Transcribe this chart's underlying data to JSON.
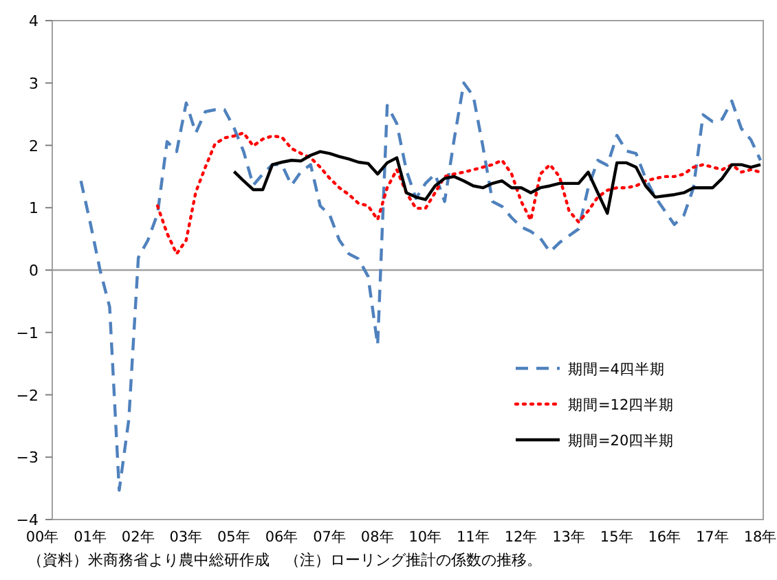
{
  "chart_data": {
    "type": "line",
    "categories": [
      "00年",
      null,
      null,
      null,
      null,
      "01年",
      null,
      null,
      null,
      null,
      "02年",
      null,
      null,
      null,
      null,
      "03年",
      null,
      null,
      null,
      null,
      "05年",
      null,
      null,
      null,
      null,
      "06年",
      null,
      null,
      null,
      null,
      "07年",
      null,
      null,
      null,
      null,
      "08年",
      null,
      null,
      null,
      null,
      "10年",
      null,
      null,
      null,
      null,
      "11年",
      null,
      null,
      null,
      null,
      "12年",
      null,
      null,
      null,
      null,
      "13年",
      null,
      null,
      null,
      null,
      "15年",
      null,
      null,
      null,
      null,
      "16年",
      null,
      null,
      null,
      null,
      "17年",
      null,
      null,
      null,
      null,
      "18年"
    ],
    "ylim": [
      -4,
      4
    ],
    "yticks": [
      -4,
      -3,
      -2,
      -1,
      0,
      1,
      2,
      3,
      4
    ],
    "legend": "bottom right",
    "series": [
      {
        "name": "期間=4四半期",
        "color": "#4f81bd",
        "line_style": "dashed",
        "values": [
          null,
          null,
          null,
          null,
          1.43,
          0.74,
          0.0,
          -0.59,
          -3.53,
          -2.4,
          0.2,
          0.48,
          0.9,
          2.06,
          1.9,
          2.68,
          2.2,
          2.54,
          2.57,
          2.57,
          2.28,
          1.9,
          1.36,
          1.54,
          1.69,
          1.69,
          1.36,
          1.58,
          1.69,
          1.03,
          0.88,
          0.48,
          0.26,
          0.18,
          -0.1,
          -1.2,
          2.64,
          2.35,
          1.6,
          1.15,
          1.39,
          1.54,
          1.1,
          2.1,
          3.0,
          2.79,
          1.98,
          1.1,
          1.02,
          0.84,
          0.69,
          0.62,
          0.51,
          0.29,
          0.44,
          0.55,
          0.66,
          1.32,
          1.76,
          1.68,
          2.16,
          1.91,
          1.87,
          1.47,
          1.17,
          0.95,
          0.73,
          0.88,
          1.32,
          2.49,
          2.38,
          2.42,
          2.71,
          2.27,
          2.09,
          1.76
        ]
      },
      {
        "name": "期間=12四半期",
        "color": "#ff0000",
        "line_style": "dotted",
        "values": [
          null,
          null,
          null,
          null,
          null,
          null,
          null,
          null,
          null,
          null,
          null,
          null,
          1.03,
          0.59,
          0.26,
          0.48,
          1.25,
          1.65,
          2.02,
          2.12,
          2.15,
          2.2,
          1.99,
          2.1,
          2.15,
          2.13,
          1.95,
          1.87,
          1.8,
          1.65,
          1.47,
          1.32,
          1.21,
          1.07,
          1.03,
          0.81,
          1.32,
          1.61,
          1.24,
          0.99,
          0.99,
          1.24,
          1.5,
          1.54,
          1.57,
          1.61,
          1.65,
          1.69,
          1.76,
          1.54,
          1.1,
          0.8,
          1.54,
          1.69,
          1.5,
          0.95,
          0.77,
          0.95,
          1.17,
          1.28,
          1.32,
          1.32,
          1.35,
          1.43,
          1.47,
          1.5,
          1.5,
          1.54,
          1.65,
          1.69,
          1.65,
          1.61,
          1.69,
          1.57,
          1.61,
          1.57
        ]
      },
      {
        "name": "期間=20四半期",
        "color": "#000000",
        "line_style": "solid",
        "values": [
          null,
          null,
          null,
          null,
          null,
          null,
          null,
          null,
          null,
          null,
          null,
          null,
          null,
          null,
          null,
          null,
          null,
          null,
          null,
          null,
          1.58,
          1.43,
          1.29,
          1.29,
          1.69,
          1.73,
          1.76,
          1.75,
          1.84,
          1.9,
          1.87,
          1.82,
          1.78,
          1.73,
          1.71,
          1.54,
          1.72,
          1.8,
          1.24,
          1.17,
          1.13,
          1.35,
          1.47,
          1.5,
          1.43,
          1.35,
          1.32,
          1.39,
          1.43,
          1.32,
          1.32,
          1.24,
          1.32,
          1.35,
          1.39,
          1.39,
          1.39,
          1.57,
          1.24,
          0.91,
          1.72,
          1.72,
          1.65,
          1.35,
          1.17,
          1.19,
          1.21,
          1.24,
          1.32,
          1.32,
          1.32,
          1.47,
          1.69,
          1.69,
          1.65,
          1.69
        ]
      }
    ],
    "annotations": [
      "（資料）米商務省より農中総研作成　（注）ローリング推計の係数の推移。"
    ]
  }
}
